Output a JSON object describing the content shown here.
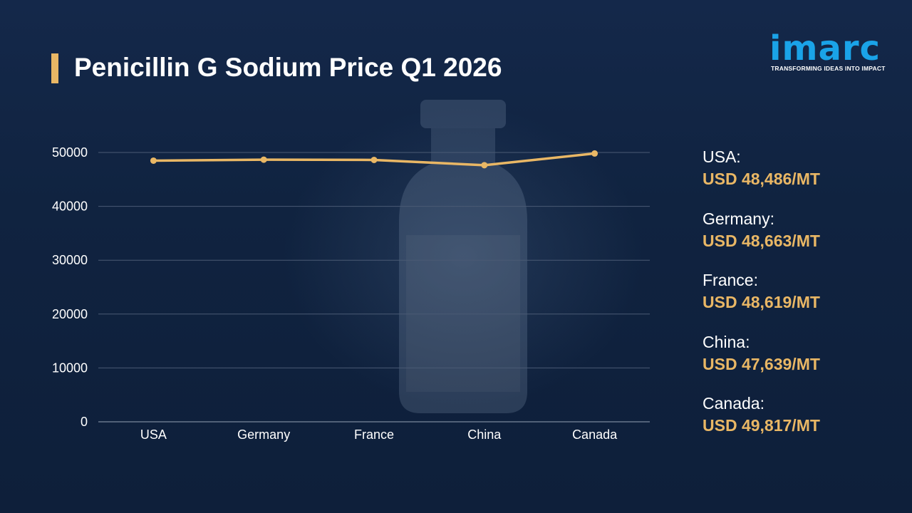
{
  "title": "Penicillin G Sodium Price Q1 2026",
  "logo": {
    "wordmark": "imarc",
    "tagline": "TRANSFORMING IDEAS INTO IMPACT"
  },
  "colors": {
    "background": "#0f2240",
    "accent": "#e9b765",
    "logo": "#1aa3e8"
  },
  "chart_data": {
    "type": "line",
    "categories": [
      "USA",
      "Germany",
      "France",
      "China",
      "Canada"
    ],
    "series": [
      {
        "values": [
          48486,
          48663,
          48619,
          47639,
          49817
        ]
      }
    ],
    "yticks": [
      "0",
      "10000",
      "20000",
      "30000",
      "40000",
      "50000"
    ],
    "ylim": [
      0,
      50000
    ],
    "grid": true,
    "legend": "none"
  },
  "price_list": [
    {
      "country": "USA:",
      "price": "USD 48,486/MT"
    },
    {
      "country": "Germany:",
      "price": "USD 48,663/MT"
    },
    {
      "country": "France:",
      "price": "USD 48,619/MT"
    },
    {
      "country": "China:",
      "price": "USD 47,639/MT"
    },
    {
      "country": "Canada:",
      "price": "USD 49,817/MT"
    }
  ]
}
